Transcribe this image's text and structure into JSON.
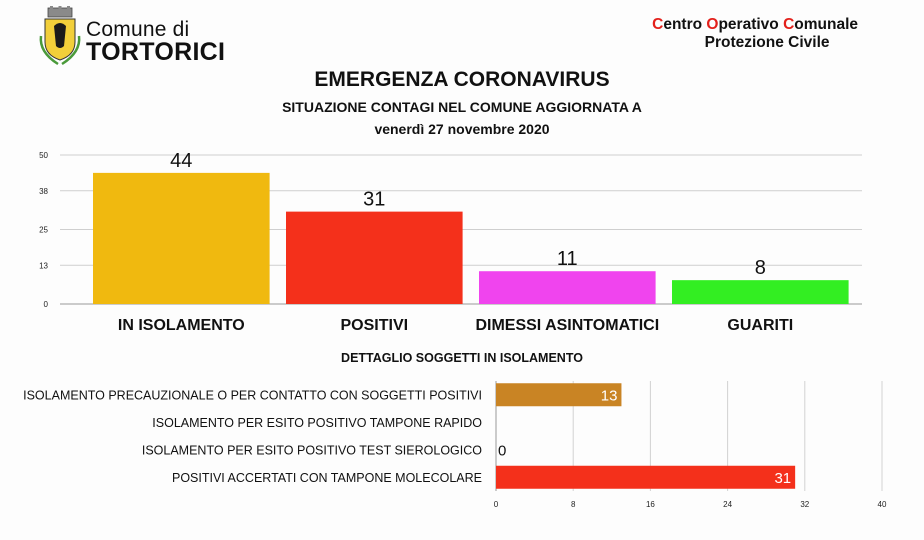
{
  "header": {
    "comune_prefix": "Comune di",
    "comune_name": "TORTORICI",
    "coc_line1": [
      {
        "text": "C",
        "red": true
      },
      {
        "text": "entro ",
        "red": false
      },
      {
        "text": "O",
        "red": true
      },
      {
        "text": "perativo ",
        "red": false
      },
      {
        "text": "C",
        "red": true
      },
      {
        "text": "omunale",
        "red": false
      }
    ],
    "coc_line2": "Protezione Civile",
    "title": "EMERGENZA CORONAVIRUS",
    "subtitle": "SITUAZIONE CONTAGI NEL COMUNE AGGIORNATA A",
    "date": "venerdì 27 novembre 2020",
    "detail_title": "DETTAGLIO SOGGETTI IN ISOLAMENTO"
  },
  "colors": {
    "isolamento": "#f0b90f",
    "positivi": "#f4301b",
    "dimessi": "#f044ee",
    "guariti": "#33ee22",
    "precauzionale": "#c98424",
    "molecolare": "#f4301b",
    "coc_red": "#e3201b"
  },
  "chart_data": [
    {
      "type": "bar",
      "categories": [
        "IN ISOLAMENTO",
        "POSITIVI",
        "DIMESSI ASINTOMATICI",
        "GUARITI"
      ],
      "values": [
        44,
        31,
        11,
        8
      ],
      "yticks": [
        "0",
        "13",
        "25",
        "38",
        "50"
      ],
      "ylim": [
        0,
        50
      ],
      "grid": true
    },
    {
      "type": "bar",
      "orientation": "horizontal",
      "title": "DETTAGLIO SOGGETTI IN ISOLAMENTO",
      "categories": [
        "ISOLAMENTO PRECAUZIONALE O PER CONTATTO CON SOGGETTI POSITIVI",
        "ISOLAMENTO PER ESITO POSITIVO TAMPONE RAPIDO",
        "ISOLAMENTO PER ESITO POSITIVO TEST SIEROLOGICO",
        "POSITIVI ACCERTATI CON TAMPONE MOLECOLARE"
      ],
      "values": [
        13,
        null,
        0,
        31
      ],
      "value_labels": [
        "13",
        "",
        "0",
        "31"
      ],
      "xticks": [
        "0",
        "8",
        "16",
        "24",
        "32",
        "40"
      ],
      "xlim": [
        0,
        40
      ],
      "grid": true
    }
  ]
}
